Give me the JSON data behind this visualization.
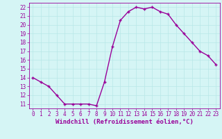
{
  "x": [
    0,
    1,
    2,
    3,
    4,
    5,
    6,
    7,
    8,
    9,
    10,
    11,
    12,
    13,
    14,
    15,
    16,
    17,
    18,
    19,
    20,
    21,
    22,
    23
  ],
  "y": [
    14.0,
    13.5,
    13.0,
    12.0,
    11.0,
    11.0,
    11.0,
    11.0,
    10.8,
    13.5,
    17.5,
    20.5,
    21.5,
    22.0,
    21.8,
    22.0,
    21.5,
    21.2,
    20.0,
    19.0,
    18.0,
    17.0,
    16.5,
    15.5
  ],
  "line_color": "#990099",
  "marker": "+",
  "markersize": 3.5,
  "linewidth": 1.0,
  "xlabel": "Windchill (Refroidissement éolien,°C)",
  "xlabel_fontsize": 6.5,
  "background_color": "#d5f5f5",
  "grid_color": "#b8e8e8",
  "ylim": [
    10.5,
    22.5
  ],
  "xlim": [
    -0.5,
    23.5
  ],
  "yticks": [
    11,
    12,
    13,
    14,
    15,
    16,
    17,
    18,
    19,
    20,
    21,
    22
  ],
  "xticks": [
    0,
    1,
    2,
    3,
    4,
    5,
    6,
    7,
    8,
    9,
    10,
    11,
    12,
    13,
    14,
    15,
    16,
    17,
    18,
    19,
    20,
    21,
    22,
    23
  ],
  "tick_fontsize": 5.5,
  "tick_color": "#990099",
  "spine_color": "#990099",
  "markeredgewidth": 1.0
}
